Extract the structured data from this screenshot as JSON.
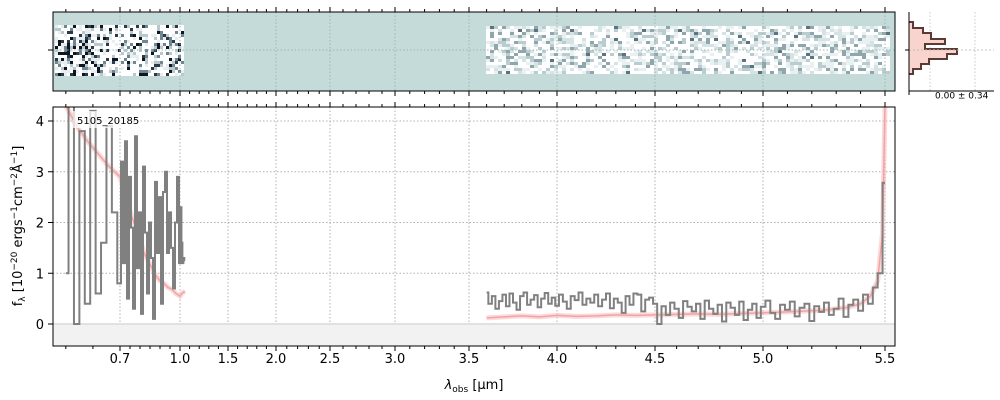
{
  "chart_data": {
    "type": "line",
    "object_label": "5105_20185",
    "xlabel_parts": {
      "lambda": "λ",
      "sub": "obs",
      "unit": " [μm]"
    },
    "ylabel": "f_λ [10^-20 ergs^-1 cm^-2 Å^-1]",
    "x_scale": "reciprocal-like (spacing ∝ 1/λ at short wavelengths)",
    "xlim": [
      0.58,
      5.52
    ],
    "ylim": [
      -0.42,
      4.25
    ],
    "x_ticks": [
      0.7,
      1.0,
      1.5,
      2.0,
      2.5,
      3.0,
      3.5,
      4.0,
      4.5,
      5.0,
      5.5
    ],
    "x_tick_labels": [
      "0.7",
      "1.0",
      "1.5",
      "2.0",
      "2.5",
      "3.0",
      "3.5",
      "4.0",
      "4.5",
      "5.0",
      "5.5"
    ],
    "y_ticks": [
      0,
      1,
      2,
      3,
      4
    ],
    "y_tick_labels": [
      "0",
      "1",
      "2",
      "3",
      "4"
    ],
    "grid": true,
    "series": [
      {
        "name": "",
        "role": "observed spectrum (step)",
        "color": "#808080",
        "segments": [
          {
            "x": [
              0.6,
              0.61,
              0.62,
              0.63,
              0.64,
              0.65,
              0.66,
              0.67,
              0.68,
              0.69,
              0.7,
              0.71,
              0.72,
              0.73,
              0.74,
              0.75,
              0.76,
              0.77,
              0.78,
              0.79,
              0.8,
              0.81,
              0.82,
              0.83,
              0.84,
              0.85,
              0.86,
              0.87,
              0.88,
              0.89,
              0.9,
              0.91,
              0.92,
              0.93,
              0.94,
              0.95,
              0.96,
              0.97,
              0.98,
              0.99,
              1.0,
              1.01,
              1.02,
              1.03,
              1.04,
              1.05
            ],
            "y": [
              1.0,
              4.3,
              0.0,
              3.8,
              0.4,
              4.2,
              0.6,
              1.6,
              3.9,
              2.2,
              0.8,
              3.2,
              1.2,
              3.6,
              0.5,
              2.9,
              1.9,
              0.3,
              3.7,
              1.1,
              2.2,
              0.2,
              3.1,
              1.8,
              0.6,
              2.0,
              1.3,
              0.1,
              2.8,
              1.4,
              2.5,
              0.4,
              2.6,
              3.0,
              1.4,
              2.2,
              1.5,
              0.7,
              2.0,
              2.9,
              1.2,
              2.3,
              1.6,
              1.2,
              1.3,
              1.25
            ]
          },
          {
            "x": [
              3.6,
              3.62,
              3.64,
              3.66,
              3.68,
              3.7,
              3.72,
              3.74,
              3.76,
              3.78,
              3.8,
              3.82,
              3.84,
              3.86,
              3.88,
              3.9,
              3.92,
              3.94,
              3.96,
              3.98,
              4.0,
              4.02,
              4.04,
              4.06,
              4.08,
              4.1,
              4.12,
              4.14,
              4.16,
              4.18,
              4.2,
              4.22,
              4.24,
              4.26,
              4.28,
              4.3,
              4.32,
              4.34,
              4.36,
              4.38,
              4.4,
              4.42,
              4.44,
              4.46,
              4.48,
              4.5,
              4.52,
              4.54,
              4.56,
              4.58,
              4.6,
              4.62,
              4.64,
              4.66,
              4.68,
              4.7,
              4.72,
              4.74,
              4.76,
              4.78,
              4.8,
              4.82,
              4.84,
              4.86,
              4.88,
              4.9,
              4.92,
              4.94,
              4.96,
              4.98,
              5.0,
              5.02,
              5.04,
              5.06,
              5.08,
              5.1,
              5.12,
              5.14,
              5.16,
              5.18,
              5.2,
              5.22,
              5.24,
              5.26,
              5.28,
              5.3,
              5.32,
              5.34,
              5.36,
              5.38,
              5.4,
              5.42,
              5.44,
              5.46,
              5.48,
              5.5
            ],
            "y": [
              0.62,
              0.4,
              0.55,
              0.3,
              0.45,
              0.58,
              0.35,
              0.6,
              0.42,
              0.28,
              0.55,
              0.62,
              0.38,
              0.48,
              0.57,
              0.33,
              0.5,
              0.61,
              0.4,
              0.52,
              0.36,
              0.58,
              0.44,
              0.3,
              0.55,
              0.47,
              0.62,
              0.38,
              0.5,
              0.42,
              0.58,
              0.35,
              0.48,
              0.6,
              0.31,
              0.5,
              0.42,
              0.22,
              0.55,
              0.38,
              0.6,
              0.58,
              0.25,
              0.48,
              0.52,
              0.4,
              0.0,
              0.35,
              0.18,
              0.42,
              0.3,
              0.12,
              0.45,
              0.34,
              0.25,
              0.4,
              0.1,
              0.46,
              0.3,
              0.2,
              0.38,
              0.05,
              0.42,
              0.32,
              0.18,
              0.44,
              0.08,
              0.28,
              0.4,
              0.12,
              0.34,
              0.46,
              0.22,
              0.1,
              0.38,
              0.28,
              0.44,
              0.15,
              0.32,
              0.4,
              0.06,
              0.35,
              0.24,
              0.42,
              0.18,
              0.3,
              0.5,
              0.14,
              0.38,
              0.48,
              0.26,
              0.58,
              0.4,
              0.72,
              1.0,
              2.78
            ]
          }
        ]
      },
      {
        "name": "",
        "role": "model (smooth, light red)",
        "color": "#f4a3a3",
        "segments": [
          {
            "x": [
              0.6,
              0.62,
              0.64,
              0.66,
              0.68,
              0.7,
              0.72,
              0.74,
              0.76,
              0.78,
              0.8,
              0.82,
              0.84,
              0.86,
              0.88,
              0.9,
              0.92,
              0.94,
              0.96,
              0.98,
              1.0,
              1.02,
              1.05
            ],
            "y": [
              4.3,
              3.9,
              3.6,
              3.35,
              3.1,
              2.9,
              2.6,
              2.35,
              2.1,
              1.9,
              1.65,
              1.4,
              1.25,
              1.1,
              0.95,
              0.85,
              0.8,
              0.72,
              0.68,
              0.6,
              0.55,
              0.6,
              0.65
            ]
          },
          {
            "x": [
              3.6,
              3.7,
              3.8,
              3.9,
              4.0,
              4.1,
              4.2,
              4.3,
              4.4,
              4.5,
              4.6,
              4.7,
              4.8,
              4.9,
              5.0,
              5.1,
              5.2,
              5.25,
              5.3,
              5.35,
              5.4,
              5.44,
              5.47,
              5.49,
              5.5
            ],
            "y": [
              0.12,
              0.14,
              0.16,
              0.14,
              0.17,
              0.15,
              0.16,
              0.18,
              0.17,
              0.18,
              0.19,
              0.2,
              0.19,
              0.21,
              0.22,
              0.24,
              0.26,
              0.27,
              0.3,
              0.33,
              0.4,
              0.55,
              0.85,
              1.8,
              4.3
            ]
          }
        ]
      }
    ],
    "side_histogram_label": "0.00 ± 0.34"
  },
  "colors": {
    "spectrum": "#808080",
    "model": "#f4a3a3",
    "model_band": "#f6c2c2",
    "twod_background": "#c5dbda",
    "grid": "#b0b0b0",
    "hist_line": "#5a3a33",
    "hist_fill": "#f8c8c0"
  }
}
